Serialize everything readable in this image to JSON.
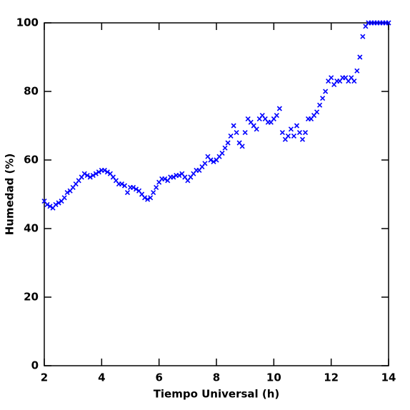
{
  "chart_data": {
    "type": "scatter",
    "x_label": "Tiempo Universal (h)",
    "y_label": "Humedad (%)",
    "xlim": [
      2,
      14
    ],
    "ylim": [
      0,
      100
    ],
    "xticks": [
      2,
      4,
      6,
      8,
      10,
      12,
      14
    ],
    "yticks": [
      0,
      20,
      40,
      60,
      80,
      100
    ],
    "color": "#0000ff",
    "marker": "x",
    "x": [
      2.0,
      2.1,
      2.2,
      2.3,
      2.4,
      2.5,
      2.6,
      2.7,
      2.8,
      2.9,
      3.0,
      3.1,
      3.2,
      3.3,
      3.4,
      3.5,
      3.6,
      3.7,
      3.8,
      3.9,
      4.0,
      4.1,
      4.2,
      4.3,
      4.4,
      4.5,
      4.6,
      4.7,
      4.8,
      4.9,
      5.0,
      5.1,
      5.2,
      5.3,
      5.4,
      5.5,
      5.6,
      5.7,
      5.8,
      5.9,
      6.0,
      6.1,
      6.2,
      6.3,
      6.4,
      6.5,
      6.6,
      6.7,
      6.8,
      6.9,
      7.0,
      7.1,
      7.2,
      7.3,
      7.4,
      7.5,
      7.6,
      7.7,
      7.8,
      7.9,
      8.0,
      8.1,
      8.2,
      8.3,
      8.4,
      8.5,
      8.6,
      8.7,
      8.8,
      8.9,
      9.0,
      9.1,
      9.2,
      9.3,
      9.4,
      9.5,
      9.6,
      9.7,
      9.8,
      9.9,
      10.0,
      10.1,
      10.2,
      10.3,
      10.4,
      10.5,
      10.6,
      10.7,
      10.8,
      10.9,
      11.0,
      11.1,
      11.2,
      11.3,
      11.4,
      11.5,
      11.6,
      11.7,
      11.8,
      11.9,
      12.0,
      12.1,
      12.2,
      12.3,
      12.4,
      12.5,
      12.6,
      12.7,
      12.8,
      12.9,
      13.0,
      13.1,
      13.2,
      13.3,
      13.4,
      13.5,
      13.6,
      13.7,
      13.8,
      13.9,
      14.0
    ],
    "values": [
      48,
      47,
      46.5,
      46,
      47,
      47.5,
      48,
      49,
      50.5,
      51,
      52,
      53,
      54,
      55,
      56,
      55.5,
      55,
      55.5,
      56,
      56.5,
      57,
      57,
      56.5,
      56,
      55,
      54,
      53,
      53,
      52.5,
      50.5,
      52,
      52,
      51.5,
      51,
      50,
      49,
      48.5,
      49,
      50.5,
      52,
      53.5,
      54.5,
      54.5,
      54,
      55,
      55,
      55.5,
      55.5,
      56,
      55,
      54,
      55,
      56,
      57,
      57,
      58,
      59,
      61,
      60,
      59.5,
      60,
      61,
      62,
      63.5,
      65,
      67,
      70,
      68,
      65,
      64,
      68,
      72,
      71,
      70,
      69,
      72,
      73,
      72,
      71,
      71,
      72,
      73,
      75,
      68,
      66,
      67,
      69,
      67,
      70,
      68,
      66,
      68,
      72,
      72,
      73,
      74,
      76,
      78,
      80,
      83,
      84,
      82,
      83,
      83,
      84,
      84,
      83,
      84,
      83,
      86,
      90,
      96,
      99,
      100,
      100,
      100,
      100,
      100,
      100,
      100,
      100
    ]
  }
}
